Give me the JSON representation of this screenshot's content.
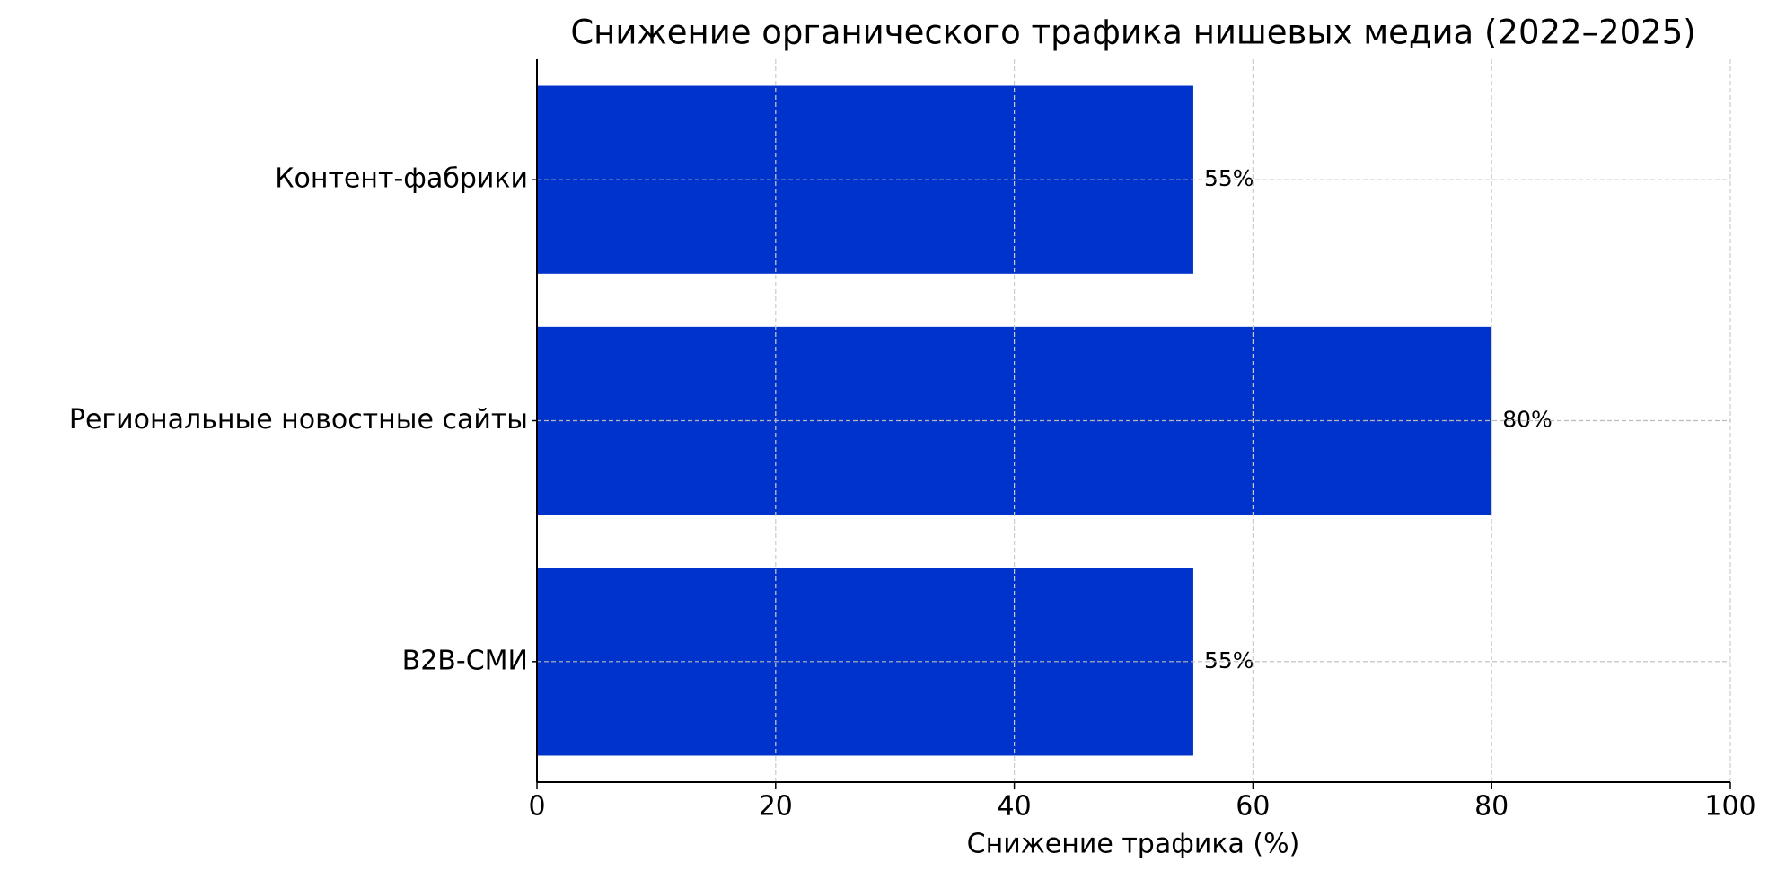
{
  "chart_data": {
    "type": "bar",
    "orientation": "horizontal",
    "title": "Снижение органического трафика нишевых медиа (2022–2025)",
    "xlabel": "Снижение трафика (%)",
    "categories": [
      "B2B-СМИ",
      "Региональные новостные сайты",
      "Контент-фабрики"
    ],
    "values": [
      55,
      80,
      55
    ],
    "value_labels": [
      "55%",
      "80%",
      "55%"
    ],
    "color": "#0033cc",
    "xlim": [
      0,
      100
    ],
    "xticks": [
      0,
      20,
      40,
      60,
      80,
      100
    ],
    "grid": true
  }
}
